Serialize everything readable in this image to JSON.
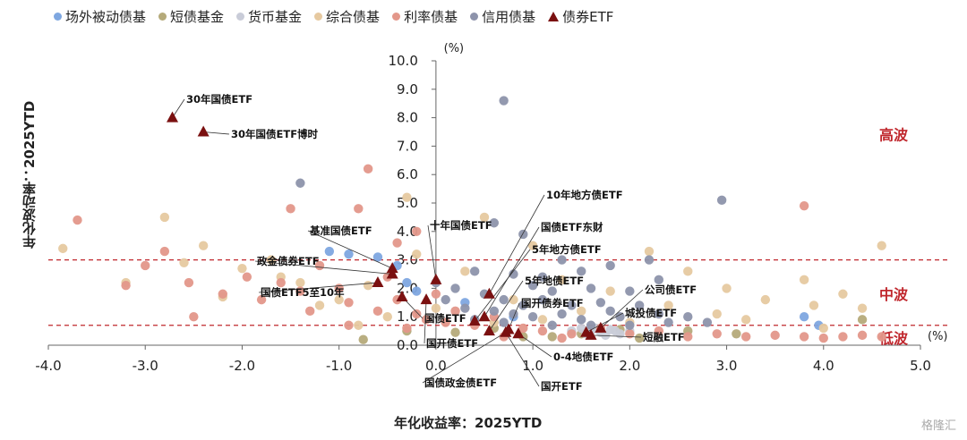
{
  "chart_data": {
    "type": "scatter",
    "title": "",
    "xlabel": "年化收益率：2025YTD",
    "ylabel": "年化波动率：2025YTD",
    "xunit": "(%)",
    "yunit": "(%)",
    "xlim": [
      -4.0,
      5.0
    ],
    "ylim": [
      0.0,
      10.0
    ],
    "xticks": [
      "-4.0",
      "-3.0",
      "-2.0",
      "-1.0",
      "0.0",
      "1.0",
      "2.0",
      "3.0",
      "4.0",
      "5.0"
    ],
    "yticks": [
      "0.0",
      "1.0",
      "2.0",
      "3.0",
      "4.0",
      "5.0",
      "6.0",
      "7.0",
      "8.0",
      "9.0",
      "10.0"
    ],
    "legend_position": "top",
    "grid": false,
    "thresholds": [
      {
        "y": 3.0,
        "color": "#c0272d"
      },
      {
        "y": 0.7,
        "color": "#c0272d"
      }
    ],
    "zones": [
      {
        "label": "高波",
        "y": 7.4
      },
      {
        "label": "中波",
        "y": 1.8
      },
      {
        "label": "低波",
        "y": 0.25
      }
    ],
    "series": [
      {
        "name": "场外被动债基",
        "color": "#7ea7e0",
        "marker": "circle",
        "points": [
          [
            -1.1,
            3.3
          ],
          [
            -0.9,
            3.2
          ],
          [
            -0.6,
            3.1
          ],
          [
            -0.4,
            2.8
          ],
          [
            -0.3,
            2.2
          ],
          [
            3.8,
            1.0
          ],
          [
            3.95,
            0.7
          ],
          [
            0.3,
            1.5
          ],
          [
            0.8,
            1.0
          ],
          [
            -0.2,
            1.9
          ]
        ]
      },
      {
        "name": "短债基金",
        "color": "#b5aa7a",
        "marker": "circle",
        "points": [
          [
            -0.75,
            0.2
          ],
          [
            0.9,
            0.3
          ],
          [
            1.5,
            0.4
          ],
          [
            2.1,
            0.25
          ],
          [
            4.4,
            0.9
          ],
          [
            0.6,
            0.6
          ],
          [
            1.9,
            0.55
          ],
          [
            2.6,
            0.5
          ],
          [
            3.1,
            0.4
          ],
          [
            0.2,
            0.45
          ],
          [
            1.2,
            0.3
          ],
          [
            -0.3,
            0.5
          ]
        ]
      },
      {
        "name": "货币基金",
        "color": "#c9ccd8",
        "marker": "circle",
        "points": [
          [
            1.6,
            0.5
          ],
          [
            1.7,
            0.45
          ],
          [
            1.8,
            0.55
          ],
          [
            1.5,
            0.6
          ],
          [
            1.9,
            0.4
          ],
          [
            2.0,
            0.5
          ],
          [
            1.4,
            0.5
          ],
          [
            1.65,
            0.6
          ],
          [
            1.75,
            0.35
          ],
          [
            1.85,
            0.5
          ],
          [
            1.55,
            0.4
          ]
        ]
      },
      {
        "name": "综合债基",
        "color": "#e6c9a0",
        "marker": "circle",
        "points": [
          [
            -3.85,
            3.4
          ],
          [
            -3.2,
            2.2
          ],
          [
            -2.8,
            4.5
          ],
          [
            -2.4,
            3.5
          ],
          [
            -2.0,
            2.7
          ],
          [
            -1.7,
            3.0
          ],
          [
            -1.6,
            2.4
          ],
          [
            -1.2,
            1.4
          ],
          [
            -0.7,
            2.1
          ],
          [
            -0.3,
            5.2
          ],
          [
            -0.2,
            3.2
          ],
          [
            0.5,
            4.5
          ],
          [
            1.0,
            3.5
          ],
          [
            1.3,
            2.3
          ],
          [
            1.8,
            1.9
          ],
          [
            2.2,
            3.3
          ],
          [
            2.6,
            2.6
          ],
          [
            3.0,
            2.0
          ],
          [
            3.4,
            1.6
          ],
          [
            3.8,
            2.3
          ],
          [
            4.2,
            1.8
          ],
          [
            4.6,
            3.5
          ],
          [
            4.4,
            1.3
          ],
          [
            3.9,
            1.4
          ],
          [
            2.9,
            1.1
          ],
          [
            2.4,
            1.4
          ],
          [
            1.5,
            1.2
          ],
          [
            0.8,
            1.6
          ],
          [
            0.3,
            2.6
          ],
          [
            0.0,
            1.3
          ],
          [
            -0.5,
            1.0
          ],
          [
            -1.0,
            1.6
          ],
          [
            -1.4,
            2.2
          ],
          [
            -2.2,
            1.7
          ],
          [
            -2.6,
            2.9
          ],
          [
            3.2,
            0.9
          ],
          [
            4.0,
            0.6
          ],
          [
            2.0,
            0.8
          ],
          [
            1.1,
            0.9
          ],
          [
            0.6,
            0.8
          ],
          [
            -0.8,
            0.7
          ]
        ]
      },
      {
        "name": "利率债基",
        "color": "#e3978a",
        "marker": "circle",
        "points": [
          [
            -3.7,
            4.4
          ],
          [
            -3.2,
            2.1
          ],
          [
            -2.8,
            3.3
          ],
          [
            -2.55,
            2.2
          ],
          [
            -2.2,
            1.8
          ],
          [
            -1.95,
            2.4
          ],
          [
            -1.8,
            1.6
          ],
          [
            -1.6,
            2.2
          ],
          [
            -1.4,
            1.9
          ],
          [
            -1.5,
            4.8
          ],
          [
            -1.2,
            2.8
          ],
          [
            -1.0,
            2.0
          ],
          [
            -0.9,
            1.5
          ],
          [
            -0.8,
            4.8
          ],
          [
            -0.7,
            6.2
          ],
          [
            -0.6,
            1.2
          ],
          [
            -0.5,
            2.4
          ],
          [
            -0.4,
            1.6
          ],
          [
            -0.2,
            1.1
          ],
          [
            -0.1,
            0.9
          ],
          [
            0.0,
            1.8
          ],
          [
            0.1,
            0.8
          ],
          [
            0.2,
            1.2
          ],
          [
            0.4,
            0.7
          ],
          [
            0.6,
            1.0
          ],
          [
            0.9,
            0.6
          ],
          [
            1.1,
            0.5
          ],
          [
            1.4,
            0.4
          ],
          [
            1.7,
            0.6
          ],
          [
            2.0,
            0.4
          ],
          [
            2.3,
            0.5
          ],
          [
            2.6,
            0.3
          ],
          [
            2.9,
            0.4
          ],
          [
            3.2,
            0.3
          ],
          [
            3.5,
            0.35
          ],
          [
            3.8,
            4.9
          ],
          [
            3.8,
            0.3
          ],
          [
            4.0,
            0.25
          ],
          [
            4.2,
            0.3
          ],
          [
            4.4,
            0.35
          ],
          [
            4.6,
            0.3
          ],
          [
            -2.5,
            1.0
          ],
          [
            -1.3,
            1.2
          ],
          [
            -0.9,
            0.7
          ],
          [
            -0.3,
            0.6
          ],
          [
            0.7,
            0.3
          ],
          [
            1.3,
            0.25
          ],
          [
            -0.2,
            4.0
          ],
          [
            -0.4,
            3.6
          ],
          [
            -3.0,
            2.8
          ]
        ]
      },
      {
        "name": "信用债基",
        "color": "#8d93ab",
        "marker": "circle",
        "points": [
          [
            0.7,
            8.6
          ],
          [
            2.95,
            5.1
          ],
          [
            -1.4,
            5.7
          ],
          [
            0.6,
            4.3
          ],
          [
            0.9,
            3.9
          ],
          [
            1.3,
            3.0
          ],
          [
            1.5,
            2.6
          ],
          [
            1.8,
            2.8
          ],
          [
            2.2,
            3.0
          ],
          [
            0.4,
            2.6
          ],
          [
            0.8,
            2.5
          ],
          [
            1.0,
            2.1
          ],
          [
            1.2,
            1.9
          ],
          [
            1.6,
            2.0
          ],
          [
            2.0,
            1.9
          ],
          [
            2.3,
            2.3
          ],
          [
            0.2,
            2.0
          ],
          [
            0.5,
            1.8
          ],
          [
            0.7,
            1.6
          ],
          [
            0.9,
            1.4
          ],
          [
            1.1,
            1.6
          ],
          [
            1.4,
            1.4
          ],
          [
            1.7,
            1.5
          ],
          [
            2.1,
            1.4
          ],
          [
            0.3,
            1.3
          ],
          [
            0.6,
            1.2
          ],
          [
            0.8,
            1.1
          ],
          [
            1.0,
            1.0
          ],
          [
            1.3,
            1.1
          ],
          [
            1.5,
            0.9
          ],
          [
            1.9,
            1.0
          ],
          [
            2.3,
            1.1
          ],
          [
            2.6,
            1.0
          ],
          [
            0.4,
            0.9
          ],
          [
            0.7,
            0.8
          ],
          [
            1.2,
            0.7
          ],
          [
            1.6,
            0.7
          ],
          [
            2.0,
            0.7
          ],
          [
            2.4,
            0.8
          ],
          [
            2.8,
            0.8
          ],
          [
            0.1,
            1.6
          ],
          [
            0.0,
            2.2
          ],
          [
            1.8,
            1.2
          ],
          [
            1.1,
            2.4
          ]
        ]
      },
      {
        "name": "债券ETF",
        "color": "#7a1010",
        "marker": "triangle",
        "points": [
          [
            -2.72,
            8.0
          ],
          [
            -2.4,
            7.5
          ],
          [
            -0.45,
            2.7
          ],
          [
            -0.45,
            2.5
          ],
          [
            -0.6,
            2.2
          ],
          [
            -0.35,
            1.7
          ],
          [
            0.0,
            2.3
          ],
          [
            -0.1,
            1.6
          ],
          [
            0.55,
            1.8
          ],
          [
            0.5,
            1.0
          ],
          [
            0.4,
            0.85
          ],
          [
            0.55,
            0.5
          ],
          [
            0.75,
            0.55
          ],
          [
            0.72,
            0.45
          ],
          [
            0.85,
            0.4
          ],
          [
            1.55,
            0.45
          ],
          [
            1.7,
            0.6
          ],
          [
            1.6,
            0.35
          ]
        ]
      }
    ],
    "annotations": [
      {
        "text": "30年国债ETF",
        "x": -2.72,
        "y": 8.0
      },
      {
        "text": "30年国债ETF博时",
        "x": -2.4,
        "y": 7.5
      },
      {
        "text": "基准国债ETF",
        "x": -0.45,
        "y": 2.7
      },
      {
        "text": "十年国债ETF",
        "x": 0.0,
        "y": 2.3
      },
      {
        "text": "政金债券ETF",
        "x": -0.45,
        "y": 2.5
      },
      {
        "text": "国债ETF5至10年",
        "x": -0.6,
        "y": 2.2
      },
      {
        "text": "10年地方债ETF",
        "x": 0.55,
        "y": 1.8
      },
      {
        "text": "国债ETF东财",
        "x": 0.5,
        "y": 1.0
      },
      {
        "text": "5年地方债ETF",
        "x": 0.4,
        "y": 0.85
      },
      {
        "text": "5年地债ETF",
        "x": 0.55,
        "y": 0.5
      },
      {
        "text": "国开债券ETF",
        "x": 0.75,
        "y": 0.55
      },
      {
        "text": "国债ETF",
        "x": -0.35,
        "y": 1.7
      },
      {
        "text": "国开债ETF",
        "x": -0.1,
        "y": 1.6
      },
      {
        "text": "公司债ETF",
        "x": 1.7,
        "y": 0.6
      },
      {
        "text": "城投债ETF",
        "x": 1.55,
        "y": 0.45
      },
      {
        "text": "短融ETF",
        "x": 1.6,
        "y": 0.35
      },
      {
        "text": "0-4地债ETF",
        "x": 0.85,
        "y": 0.4
      },
      {
        "text": "国债政金债ETF",
        "x": 0.72,
        "y": 0.45
      },
      {
        "text": "国开ETF",
        "x": 0.72,
        "y": 0.45
      }
    ]
  },
  "watermark": "格隆汇"
}
